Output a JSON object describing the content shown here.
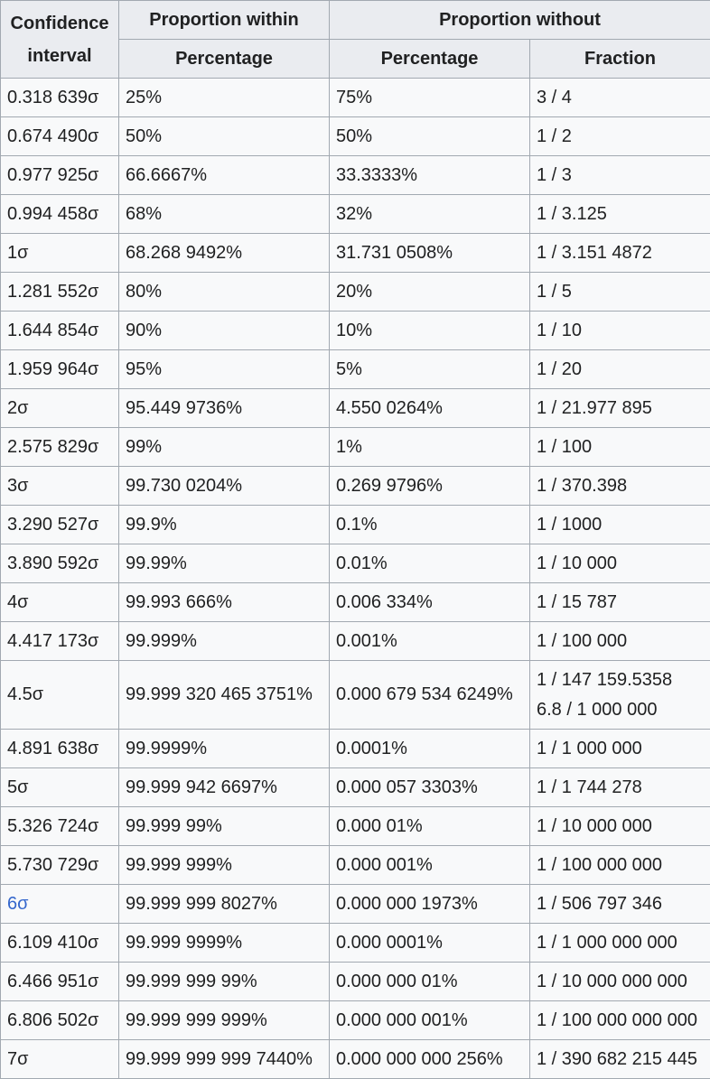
{
  "header": {
    "confidence_interval": "Confidence interval",
    "proportion_within": "Proportion within",
    "proportion_without": "Proportion without",
    "within_percentage": "Percentage",
    "without_percentage": "Percentage",
    "without_fraction": "Fraction"
  },
  "rows": [
    {
      "ci": "0.318 639σ",
      "within": "25%",
      "without": "75%",
      "fraction": "3 / 4"
    },
    {
      "ci": "0.674 490σ",
      "within": "50%",
      "without": "50%",
      "fraction": "1 / 2"
    },
    {
      "ci": "0.977 925σ",
      "within": "66.6667%",
      "without": "33.3333%",
      "fraction": "1 / 3"
    },
    {
      "ci": "0.994 458σ",
      "within": "68%",
      "without": "32%",
      "fraction": "1 / 3.125"
    },
    {
      "ci": "1σ",
      "within": "68.268 9492%",
      "without": "31.731 0508%",
      "fraction": "1 / 3.151 4872"
    },
    {
      "ci": "1.281 552σ",
      "within": "80%",
      "without": "20%",
      "fraction": "1 / 5"
    },
    {
      "ci": "1.644 854σ",
      "within": "90%",
      "without": "10%",
      "fraction": "1 / 10"
    },
    {
      "ci": "1.959 964σ",
      "within": "95%",
      "without": "5%",
      "fraction": "1 / 20"
    },
    {
      "ci": "2σ",
      "within": "95.449 9736%",
      "without": "4.550 0264%",
      "fraction": "1 / 21.977 895"
    },
    {
      "ci": "2.575 829σ",
      "within": "99%",
      "without": "1%",
      "fraction": "1 / 100"
    },
    {
      "ci": "3σ",
      "within": "99.730 0204%",
      "without": "0.269 9796%",
      "fraction": "1 / 370.398"
    },
    {
      "ci": "3.290 527σ",
      "within": "99.9%",
      "without": "0.1%",
      "fraction": "1 / 1000"
    },
    {
      "ci": "3.890 592σ",
      "within": "99.99%",
      "without": "0.01%",
      "fraction": "1 / 10 000"
    },
    {
      "ci": "4σ",
      "within": "99.993 666%",
      "without": "0.006 334%",
      "fraction": "1 / 15 787"
    },
    {
      "ci": "4.417 173σ",
      "within": "99.999%",
      "without": "0.001%",
      "fraction": "1 / 100 000"
    }
  ],
  "row_45": {
    "ci": "4.5σ",
    "within": "99.999 320 465 3751%",
    "without": "0.000 679 534 6249%",
    "fraction_line1": "1 / 147 159.5358",
    "fraction_line2": "6.8 / 1 000 000"
  },
  "rows_b": [
    {
      "ci": "4.891 638σ",
      "within": "99.9999%",
      "without": "0.0001%",
      "fraction": "1 / 1 000 000"
    },
    {
      "ci": "5σ",
      "within": "99.999 942 6697%",
      "without": "0.000 057 3303%",
      "fraction": "1 / 1 744 278"
    },
    {
      "ci": "5.326 724σ",
      "within": "99.999 99%",
      "without": "0.000 01%",
      "fraction": "1 / 10 000 000"
    },
    {
      "ci": "5.730 729σ",
      "within": "99.999 999%",
      "without": "0.000 001%",
      "fraction": "1 / 100 000 000"
    }
  ],
  "row_6": {
    "ci": "6σ",
    "within": "99.999 999 8027%",
    "without": "0.000 000 1973%",
    "fraction": "1 / 506 797 346",
    "link_color": "#3366cc"
  },
  "rows_c": [
    {
      "ci": "6.109 410σ",
      "within": "99.999 9999%",
      "without": "0.000 0001%",
      "fraction": "1 / 1 000 000 000"
    },
    {
      "ci": "6.466 951σ",
      "within": "99.999 999 99%",
      "without": "0.000 000 01%",
      "fraction": "1 / 10 000 000 000"
    },
    {
      "ci": "6.806 502σ",
      "within": "99.999 999 999%",
      "without": "0.000 000 001%",
      "fraction": "1 / 100 000 000 000"
    },
    {
      "ci": "7σ",
      "within": "99.999 999 999 7440%",
      "without": "0.000 000 000 256%",
      "fraction": "1 / 390 682 215 445"
    }
  ]
}
